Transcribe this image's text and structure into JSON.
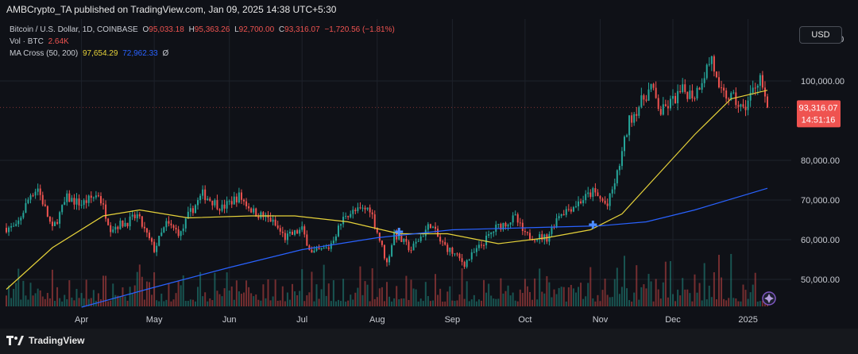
{
  "header": {
    "publisher": "AMBCrypto_TA published on TradingView.com, Jan 09, 2025 14:38 UTC+5:30"
  },
  "ui": {
    "currency": "USD"
  },
  "legend": {
    "symbol": "Bitcoin / U.S. Dollar, 1D, COINBASE",
    "o_label": "O",
    "o_value": "95,033.18",
    "h_label": "H",
    "h_value": "95,363.26",
    "l_label": "L",
    "l_value": "92,700.00",
    "c_label": "C",
    "c_value": "93,316.07",
    "change": "−1,720.56 (−1.81%)",
    "vol_label": "Vol · BTC",
    "vol_value": "2.64K",
    "ma_label": "MA Cross (50, 200)",
    "ma_fast": "97,654.29",
    "ma_slow": "72,962.33",
    "ma_extra": "Ø"
  },
  "price_tag": {
    "price": "93,316.07",
    "countdown": "14:51:16"
  },
  "footer": {
    "brand": "TradingView"
  },
  "colors": {
    "up": "#26a69a",
    "down": "#ef5350",
    "ma50": "#e6d23a",
    "ma200": "#2962ff",
    "bg": "#0f1117",
    "grid": "#1e222b",
    "text": "#c9ccd3"
  },
  "chart_data": {
    "type": "candlestick",
    "x_tick_labels": [
      "Apr",
      "May",
      "Jun",
      "Jul",
      "Aug",
      "Sep",
      "Oct",
      "Nov",
      "Dec",
      "2025"
    ],
    "y_tick_labels": [
      "50,000.00",
      "60,000.00",
      "70,000.00",
      "80,000.00",
      "100,000.00"
    ],
    "ylim": [
      43000,
      110000
    ],
    "grid": true,
    "close_path": [
      [
        "2024-03-05",
        63000
      ],
      [
        "2024-03-11",
        71500
      ],
      [
        "2024-03-14",
        73000
      ],
      [
        "2024-03-20",
        62500
      ],
      [
        "2024-03-26",
        70500
      ],
      [
        "2024-04-01",
        69000
      ],
      [
        "2024-04-08",
        71500
      ],
      [
        "2024-04-13",
        63000
      ],
      [
        "2024-04-20",
        64500
      ],
      [
        "2024-04-24",
        66000
      ],
      [
        "2024-05-01",
        57500
      ],
      [
        "2024-05-06",
        64000
      ],
      [
        "2024-05-12",
        61500
      ],
      [
        "2024-05-15",
        66000
      ],
      [
        "2024-05-21",
        71500
      ],
      [
        "2024-05-29",
        68000
      ],
      [
        "2024-06-05",
        71000
      ],
      [
        "2024-06-11",
        67000
      ],
      [
        "2024-06-18",
        65000
      ],
      [
        "2024-06-24",
        60500
      ],
      [
        "2024-07-01",
        62500
      ],
      [
        "2024-07-05",
        56500
      ],
      [
        "2024-07-12",
        58000
      ],
      [
        "2024-07-19",
        66500
      ],
      [
        "2024-07-29",
        68000
      ],
      [
        "2024-08-05",
        54000
      ],
      [
        "2024-08-08",
        61500
      ],
      [
        "2024-08-15",
        57500
      ],
      [
        "2024-08-23",
        64000
      ],
      [
        "2024-08-27",
        59500
      ],
      [
        "2024-09-06",
        54000
      ],
      [
        "2024-09-12",
        58000
      ],
      [
        "2024-09-19",
        63000
      ],
      [
        "2024-09-27",
        65500
      ],
      [
        "2024-10-01",
        61000
      ],
      [
        "2024-10-10",
        60500
      ],
      [
        "2024-10-15",
        66500
      ],
      [
        "2024-10-21",
        68500
      ],
      [
        "2024-10-29",
        72000
      ],
      [
        "2024-11-04",
        68500
      ],
      [
        "2024-11-08",
        76500
      ],
      [
        "2024-11-13",
        90000
      ],
      [
        "2024-11-22",
        98500
      ],
      [
        "2024-11-26",
        92000
      ],
      [
        "2024-12-05",
        97500
      ],
      [
        "2024-12-10",
        96500
      ],
      [
        "2024-12-17",
        106000
      ],
      [
        "2024-12-20",
        97000
      ],
      [
        "2024-12-26",
        95500
      ],
      [
        "2024-12-30",
        92500
      ],
      [
        "2025-01-06",
        101500
      ],
      [
        "2025-01-08",
        95000
      ],
      [
        "2025-01-09",
        93316
      ]
    ],
    "ma50": [
      [
        "2024-03-01",
        47500
      ],
      [
        "2024-03-20",
        58000
      ],
      [
        "2024-04-10",
        66000
      ],
      [
        "2024-04-25",
        67500
      ],
      [
        "2024-05-15",
        65500
      ],
      [
        "2024-06-10",
        66000
      ],
      [
        "2024-06-28",
        66000
      ],
      [
        "2024-07-20",
        64500
      ],
      [
        "2024-08-10",
        61500
      ],
      [
        "2024-08-30",
        61500
      ],
      [
        "2024-09-20",
        59000
      ],
      [
        "2024-10-10",
        60500
      ],
      [
        "2024-10-28",
        62500
      ],
      [
        "2024-11-10",
        66500
      ],
      [
        "2024-11-25",
        76500
      ],
      [
        "2024-12-10",
        86500
      ],
      [
        "2024-12-25",
        95500
      ],
      [
        "2025-01-09",
        97654
      ]
    ],
    "ma200": [
      [
        "2024-04-01",
        43000
      ],
      [
        "2024-05-01",
        48000
      ],
      [
        "2024-06-01",
        53000
      ],
      [
        "2024-07-01",
        57500
      ],
      [
        "2024-08-01",
        60500
      ],
      [
        "2024-09-01",
        62500
      ],
      [
        "2024-10-01",
        63000
      ],
      [
        "2024-11-01",
        63500
      ],
      [
        "2024-11-20",
        64500
      ],
      [
        "2024-12-10",
        67500
      ],
      [
        "2025-01-09",
        72962
      ]
    ],
    "cross_markers": [
      [
        "2024-08-10",
        62000
      ],
      [
        "2024-10-29",
        63800
      ]
    ],
    "volume_level": 0.18
  }
}
